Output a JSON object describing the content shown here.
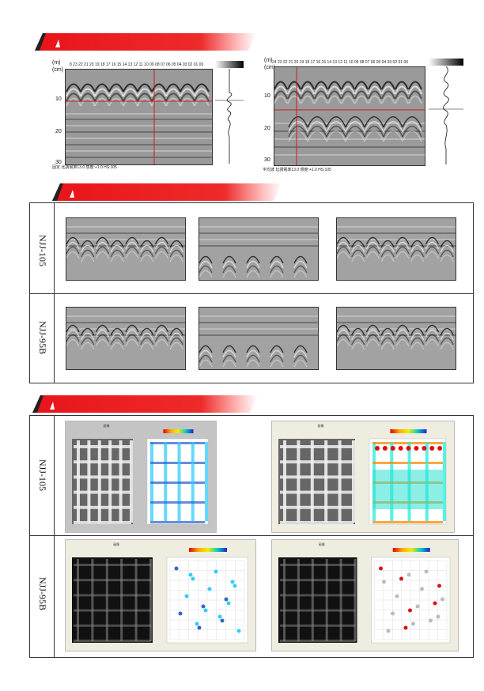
{
  "section1": {
    "left_scan": {
      "unit_top": "(m)",
      "unit_left": "(cm)",
      "top_ticks": "8 23 22 21 20 19 18 17 16 15 14 13 12 11 10 09 08 07 06 05 04 03 02 01 00",
      "depth_labels": [
        "10",
        "20",
        "30"
      ],
      "footer": "固定  比誘電率13.0  感度:+1.0  HS:105"
    },
    "right_scan": {
      "unit_top": "(m)",
      "unit_left": "(cm)",
      "top_ticks": "24 23 22 21 20 19 18 17 16 15 14 13 12 11 10 09 08 07 06 05 04 03 02 01 00",
      "depth_labels": [
        "10",
        "20",
        "30"
      ],
      "footer": "平均波  比誘電率13.0  感度:+1.0  HS:105"
    }
  },
  "section2": {
    "rows": [
      {
        "label": "NJJ-105"
      },
      {
        "label": "NJJ-95B"
      }
    ]
  },
  "section3": {
    "rows": [
      {
        "label": "NJJ-105"
      },
      {
        "label": "NJJ-95B"
      }
    ],
    "map_title": "画像"
  },
  "colors": {
    "banner_red": "#e8141a",
    "crosshair": "#c81e1e"
  }
}
